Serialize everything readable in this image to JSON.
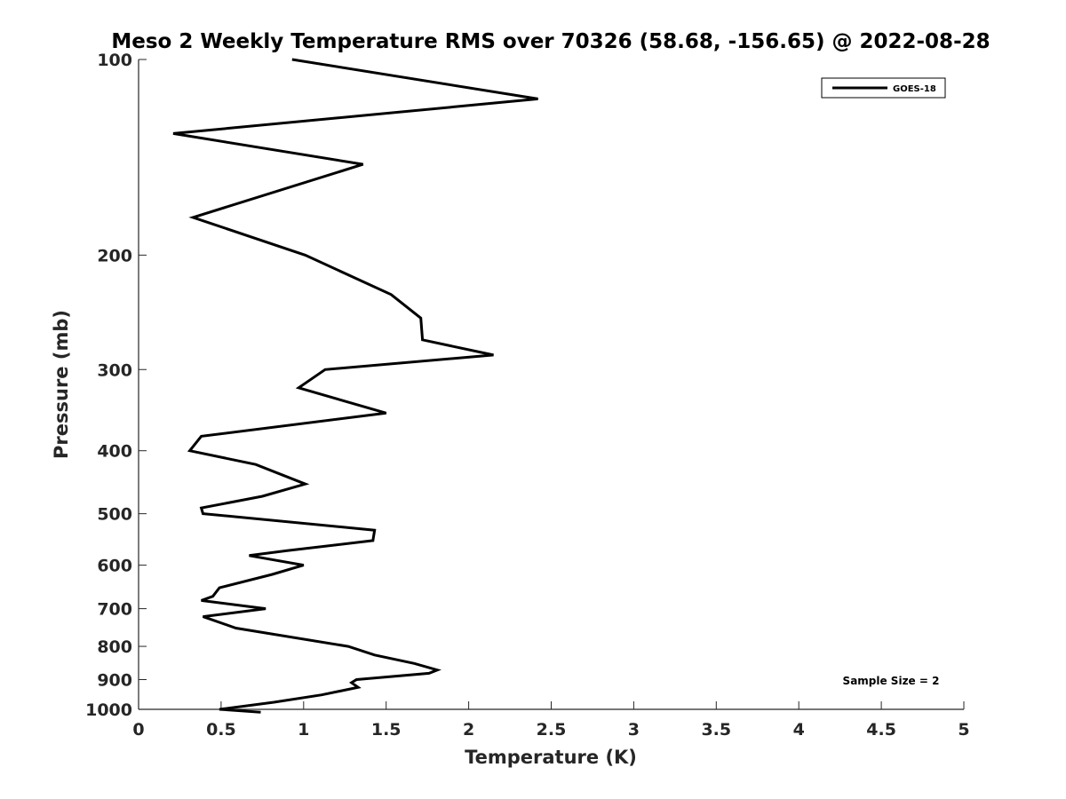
{
  "chart_data": {
    "type": "line",
    "title": "Meso 2 Weekly Temperature RMS over 70326 (58.68, -156.65) @ 2022-08-28",
    "xlabel": "Temperature (K)",
    "ylabel": "Pressure (mb)",
    "xlim": [
      0,
      5
    ],
    "ylim": [
      100,
      1000
    ],
    "y_scale": "log",
    "y_reversed": true,
    "xticks": [
      "0",
      "0.5",
      "1",
      "1.5",
      "2",
      "2.5",
      "3",
      "3.5",
      "4",
      "4.5",
      "5"
    ],
    "yticks": [
      "100",
      "200",
      "300",
      "400",
      "500",
      "600",
      "700",
      "800",
      "900",
      "1000"
    ],
    "grid": false,
    "legend_position": "top-right",
    "series": [
      {
        "name": "GOES-18",
        "color": "#000000",
        "points": [
          [
            0.93,
            100
          ],
          [
            2.42,
            115
          ],
          [
            0.21,
            130
          ],
          [
            1.36,
            145
          ],
          [
            0.33,
            175
          ],
          [
            1.01,
            200
          ],
          [
            1.53,
            230
          ],
          [
            1.71,
            250
          ],
          [
            1.72,
            270
          ],
          [
            2.15,
            285
          ],
          [
            1.13,
            300
          ],
          [
            0.97,
            320
          ],
          [
            1.5,
            350
          ],
          [
            0.38,
            380
          ],
          [
            0.31,
            400
          ],
          [
            0.71,
            420
          ],
          [
            1.01,
            450
          ],
          [
            0.75,
            470
          ],
          [
            0.38,
            490
          ],
          [
            0.39,
            500
          ],
          [
            1.43,
            530
          ],
          [
            1.42,
            550
          ],
          [
            0.9,
            570
          ],
          [
            0.67,
            580
          ],
          [
            1.0,
            600
          ],
          [
            0.81,
            620
          ],
          [
            0.49,
            650
          ],
          [
            0.45,
            670
          ],
          [
            0.38,
            680
          ],
          [
            0.77,
            700
          ],
          [
            0.39,
            720
          ],
          [
            0.59,
            750
          ],
          [
            1.27,
            800
          ],
          [
            1.43,
            825
          ],
          [
            1.67,
            850
          ],
          [
            1.81,
            870
          ],
          [
            1.76,
            880
          ],
          [
            1.32,
            900
          ],
          [
            1.29,
            910
          ],
          [
            1.33,
            925
          ],
          [
            1.11,
            950
          ],
          [
            0.82,
            975
          ],
          [
            0.49,
            1000
          ],
          [
            0.74,
            1010
          ]
        ]
      }
    ],
    "annotations": [
      "Sample Size = 2"
    ]
  }
}
